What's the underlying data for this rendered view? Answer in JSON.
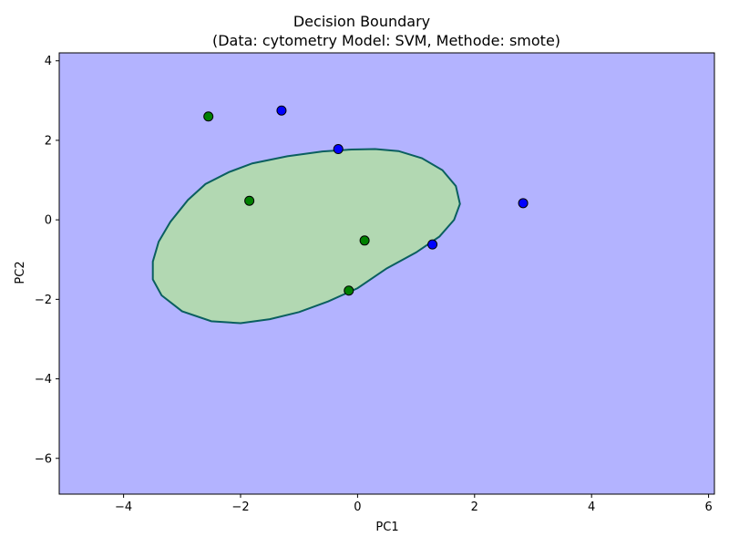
{
  "chart_data": {
    "type": "scatter",
    "title": "Decision Boundary",
    "subtitle": "(Data: cytometry Model: SVM, Methode: smote)",
    "xlabel": "PC1",
    "ylabel": "PC2",
    "xlim": [
      -5.1,
      6.1
    ],
    "ylim": [
      -6.9,
      4.2
    ],
    "x_ticks": [
      -4,
      -2,
      0,
      2,
      4,
      6
    ],
    "y_ticks": [
      -6,
      -4,
      -2,
      0,
      2,
      4
    ],
    "grid": false,
    "background_region": {
      "class": "blue",
      "color": "#b3b3ff"
    },
    "decision_region": {
      "class": "green",
      "fill": "#b2d8b2",
      "edge": "#0a5f5f",
      "boundary": [
        [
          -3.5,
          -1.05
        ],
        [
          -3.4,
          -0.55
        ],
        [
          -3.2,
          -0.05
        ],
        [
          -2.9,
          0.5
        ],
        [
          -2.6,
          0.9
        ],
        [
          -2.2,
          1.2
        ],
        [
          -1.8,
          1.42
        ],
        [
          -1.2,
          1.6
        ],
        [
          -0.6,
          1.72
        ],
        [
          -0.1,
          1.77
        ],
        [
          0.3,
          1.78
        ],
        [
          0.7,
          1.73
        ],
        [
          1.1,
          1.55
        ],
        [
          1.45,
          1.25
        ],
        [
          1.68,
          0.85
        ],
        [
          1.75,
          0.4
        ],
        [
          1.65,
          0.0
        ],
        [
          1.4,
          -0.42
        ],
        [
          1.0,
          -0.82
        ],
        [
          0.5,
          -1.22
        ],
        [
          0.0,
          -1.72
        ],
        [
          -0.5,
          -2.05
        ],
        [
          -1.0,
          -2.32
        ],
        [
          -1.5,
          -2.5
        ],
        [
          -2.0,
          -2.6
        ],
        [
          -2.5,
          -2.55
        ],
        [
          -3.0,
          -2.3
        ],
        [
          -3.35,
          -1.9
        ],
        [
          -3.5,
          -1.5
        ]
      ]
    },
    "series": [
      {
        "color": "#0000ff",
        "points": [
          [
            -1.3,
            2.75
          ],
          [
            -0.33,
            1.78
          ],
          [
            2.83,
            0.42
          ],
          [
            1.28,
            -0.62
          ]
        ]
      },
      {
        "color": "#008000",
        "points": [
          [
            -2.55,
            2.6
          ],
          [
            -1.85,
            0.48
          ],
          [
            0.12,
            -0.52
          ],
          [
            -0.15,
            -1.78
          ]
        ]
      }
    ]
  }
}
